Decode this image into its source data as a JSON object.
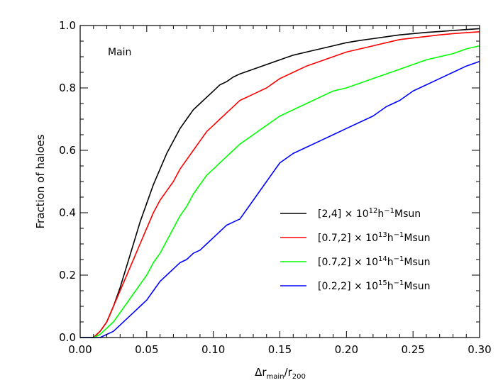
{
  "chart_data": {
    "type": "line",
    "annotation": "Main",
    "xlabel": {
      "prefix": "Δr",
      "sub1": "main",
      "mid": "/r",
      "sub2": "200"
    },
    "ylabel": "Fraction of haloes",
    "xlim": [
      0.0,
      0.3
    ],
    "ylim": [
      0.0,
      1.0
    ],
    "xticks": [
      0.0,
      0.05,
      0.1,
      0.15,
      0.2,
      0.25,
      0.3
    ],
    "xtick_labels": [
      "0.00",
      "0.05",
      "0.10",
      "0.15",
      "0.20",
      "0.25",
      "0.30"
    ],
    "yticks": [
      0.0,
      0.2,
      0.4,
      0.6,
      0.8,
      1.0
    ],
    "ytick_labels": [
      "0.0",
      "0.2",
      "0.4",
      "0.6",
      "0.8",
      "1.0"
    ],
    "legend_position": "lower-right",
    "series": [
      {
        "label": {
          "range": "[2,4]",
          "times": "× 10",
          "exp": "12",
          "h": "h",
          "hexp": "−1",
          "unit": "Msun"
        },
        "color": "#000000",
        "x": [
          0.0,
          0.01,
          0.015,
          0.02,
          0.025,
          0.03,
          0.035,
          0.04,
          0.045,
          0.05,
          0.055,
          0.06,
          0.065,
          0.07,
          0.075,
          0.08,
          0.085,
          0.09,
          0.095,
          0.1,
          0.105,
          0.11,
          0.115,
          0.12,
          0.13,
          0.14,
          0.15,
          0.16,
          0.17,
          0.18,
          0.19,
          0.2,
          0.21,
          0.22,
          0.23,
          0.24,
          0.25,
          0.26,
          0.27,
          0.28,
          0.29,
          0.3
        ],
        "y": [
          0.0,
          0.0,
          0.02,
          0.05,
          0.1,
          0.16,
          0.23,
          0.3,
          0.37,
          0.43,
          0.49,
          0.54,
          0.59,
          0.63,
          0.67,
          0.7,
          0.73,
          0.75,
          0.77,
          0.79,
          0.81,
          0.82,
          0.835,
          0.845,
          0.86,
          0.875,
          0.89,
          0.905,
          0.915,
          0.925,
          0.935,
          0.945,
          0.952,
          0.958,
          0.964,
          0.97,
          0.974,
          0.978,
          0.981,
          0.984,
          0.987,
          0.99
        ]
      },
      {
        "label": {
          "range": "[0.7,2]",
          "times": "× 10",
          "exp": "13",
          "h": "h",
          "hexp": "−1",
          "unit": "Msun"
        },
        "color": "#ff0000",
        "x": [
          0.0,
          0.01,
          0.015,
          0.02,
          0.025,
          0.03,
          0.035,
          0.04,
          0.045,
          0.05,
          0.055,
          0.06,
          0.065,
          0.07,
          0.075,
          0.08,
          0.085,
          0.09,
          0.095,
          0.1,
          0.105,
          0.11,
          0.115,
          0.12,
          0.13,
          0.14,
          0.15,
          0.16,
          0.17,
          0.18,
          0.19,
          0.2,
          0.21,
          0.22,
          0.23,
          0.24,
          0.25,
          0.26,
          0.27,
          0.28,
          0.29,
          0.3
        ],
        "y": [
          0.0,
          0.0,
          0.02,
          0.05,
          0.1,
          0.15,
          0.2,
          0.25,
          0.3,
          0.35,
          0.4,
          0.44,
          0.47,
          0.5,
          0.54,
          0.57,
          0.6,
          0.63,
          0.66,
          0.68,
          0.7,
          0.72,
          0.74,
          0.76,
          0.78,
          0.8,
          0.83,
          0.85,
          0.87,
          0.885,
          0.9,
          0.915,
          0.925,
          0.935,
          0.945,
          0.955,
          0.96,
          0.965,
          0.97,
          0.974,
          0.977,
          0.98
        ]
      },
      {
        "label": {
          "range": "[0.7,2]",
          "times": "× 10",
          "exp": "14",
          "h": "h",
          "hexp": "−1",
          "unit": "Msun"
        },
        "color": "#00ff00",
        "x": [
          0.0,
          0.01,
          0.015,
          0.02,
          0.025,
          0.03,
          0.035,
          0.04,
          0.045,
          0.05,
          0.055,
          0.06,
          0.065,
          0.07,
          0.075,
          0.08,
          0.085,
          0.09,
          0.095,
          0.1,
          0.105,
          0.11,
          0.115,
          0.12,
          0.13,
          0.14,
          0.15,
          0.16,
          0.17,
          0.18,
          0.19,
          0.2,
          0.21,
          0.22,
          0.23,
          0.24,
          0.25,
          0.26,
          0.27,
          0.28,
          0.29,
          0.3
        ],
        "y": [
          0.0,
          0.0,
          0.01,
          0.03,
          0.05,
          0.08,
          0.11,
          0.14,
          0.17,
          0.2,
          0.24,
          0.27,
          0.31,
          0.35,
          0.39,
          0.42,
          0.46,
          0.49,
          0.52,
          0.54,
          0.56,
          0.58,
          0.6,
          0.62,
          0.65,
          0.68,
          0.71,
          0.73,
          0.75,
          0.77,
          0.79,
          0.8,
          0.815,
          0.83,
          0.845,
          0.86,
          0.875,
          0.89,
          0.9,
          0.91,
          0.925,
          0.935
        ]
      },
      {
        "label": {
          "range": "[0.2,2]",
          "times": "× 10",
          "exp": "15",
          "h": "h",
          "hexp": "−1",
          "unit": "Msun"
        },
        "color": "#0000ff",
        "x": [
          0.0,
          0.01,
          0.015,
          0.02,
          0.025,
          0.03,
          0.035,
          0.04,
          0.045,
          0.05,
          0.055,
          0.06,
          0.065,
          0.07,
          0.075,
          0.08,
          0.085,
          0.09,
          0.095,
          0.1,
          0.105,
          0.11,
          0.115,
          0.12,
          0.13,
          0.14,
          0.15,
          0.16,
          0.17,
          0.18,
          0.19,
          0.2,
          0.21,
          0.22,
          0.23,
          0.24,
          0.25,
          0.26,
          0.27,
          0.28,
          0.29,
          0.3
        ],
        "y": [
          0.0,
          0.0,
          0.0,
          0.01,
          0.02,
          0.04,
          0.06,
          0.08,
          0.1,
          0.12,
          0.15,
          0.18,
          0.2,
          0.22,
          0.24,
          0.25,
          0.27,
          0.28,
          0.3,
          0.32,
          0.34,
          0.36,
          0.37,
          0.38,
          0.44,
          0.5,
          0.56,
          0.59,
          0.61,
          0.63,
          0.65,
          0.67,
          0.69,
          0.71,
          0.74,
          0.76,
          0.79,
          0.81,
          0.83,
          0.85,
          0.87,
          0.885
        ]
      }
    ]
  }
}
